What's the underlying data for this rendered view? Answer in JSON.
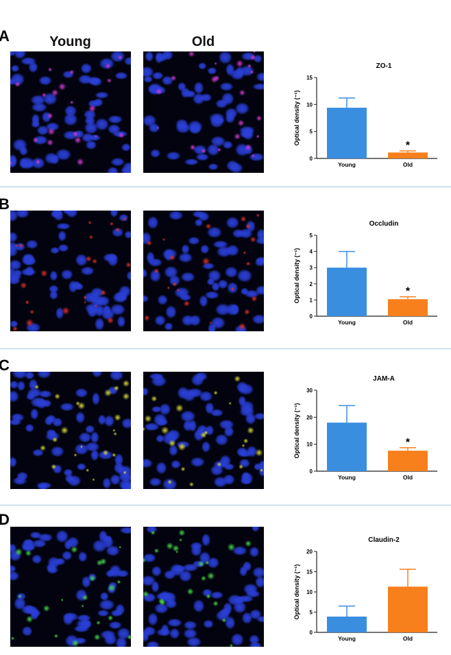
{
  "columns": {
    "young": "Young",
    "old": "Old"
  },
  "panels": [
    {
      "letter": "A",
      "stain": "#d23ad2"
    },
    {
      "letter": "B",
      "stain": "#e0302a"
    },
    {
      "letter": "C",
      "stain": "#d8d83a"
    },
    {
      "letter": "D",
      "stain": "#46d84a"
    }
  ],
  "colors": {
    "young": "#3a8ee0",
    "old": "#f7801c",
    "nuclei": "#2a3fd8"
  },
  "chart_data": [
    {
      "type": "bar",
      "title": "ZO-1",
      "ylabel": "Optical density (⁻¹)",
      "categories": [
        "Young",
        "Old"
      ],
      "values": [
        9.4,
        1.1
      ],
      "error_upper": [
        11.2,
        1.4
      ],
      "ylim": [
        0,
        15
      ],
      "yticks": [
        0,
        5,
        10,
        15
      ],
      "significance": [
        null,
        "*"
      ],
      "grid": false
    },
    {
      "type": "bar",
      "title": "Occludin",
      "ylabel": "Optical density (⁻¹)",
      "categories": [
        "Young",
        "Old"
      ],
      "values": [
        3.0,
        1.05
      ],
      "error_upper": [
        4.0,
        1.2
      ],
      "ylim": [
        0,
        5
      ],
      "yticks": [
        0,
        1,
        2,
        3,
        4,
        5
      ],
      "significance": [
        null,
        "*"
      ],
      "grid": false
    },
    {
      "type": "bar",
      "title": "JAM-A",
      "ylabel": "Optical density (⁻¹)",
      "categories": [
        "Young",
        "Old"
      ],
      "values": [
        18.0,
        7.6
      ],
      "error_upper": [
        24.3,
        8.7
      ],
      "ylim": [
        0,
        30
      ],
      "yticks": [
        0,
        10,
        20,
        30
      ],
      "significance": [
        null,
        "*"
      ],
      "grid": false
    },
    {
      "type": "bar",
      "title": "Claudin-2",
      "ylabel": "Optical density (⁻¹)",
      "categories": [
        "Young",
        "Old"
      ],
      "values": [
        3.9,
        11.3
      ],
      "error_upper": [
        6.5,
        15.6
      ],
      "ylim": [
        0,
        20
      ],
      "yticks": [
        0,
        5,
        10,
        15,
        20
      ],
      "significance": [
        null,
        null
      ],
      "grid": false
    }
  ]
}
